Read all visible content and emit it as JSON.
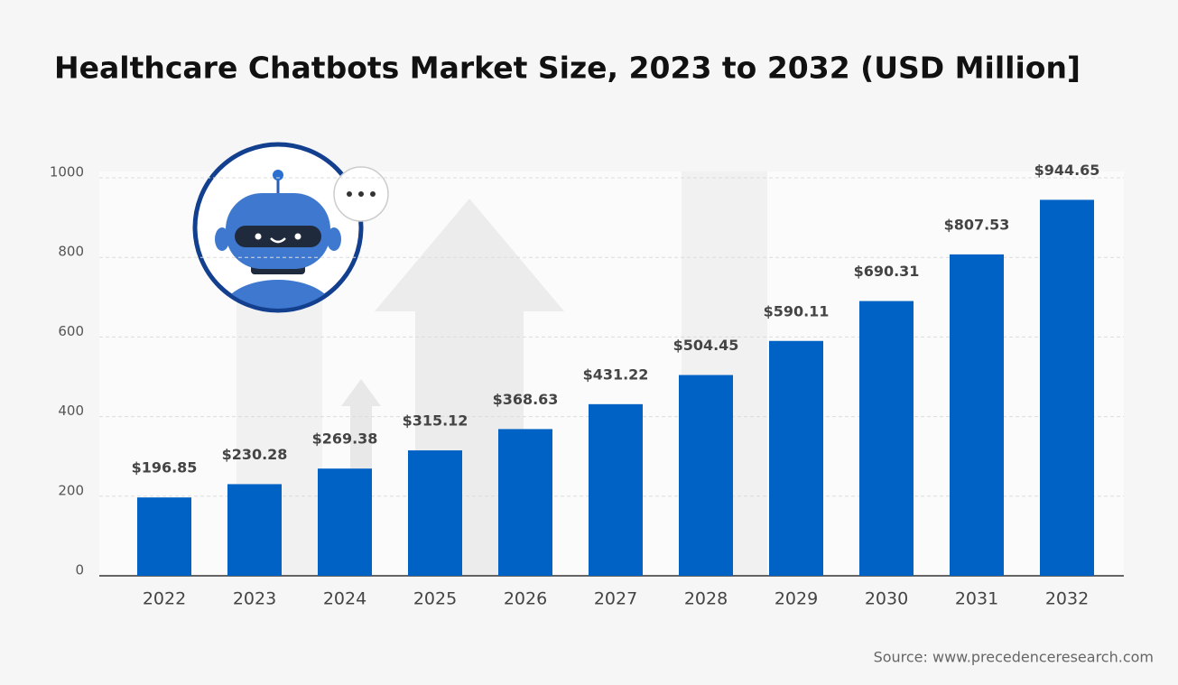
{
  "chart_data": {
    "type": "bar",
    "title": "Healthcare Chatbots Market Size, 2023 to 2032 (USD Million]",
    "categories": [
      "2022",
      "2023",
      "2024",
      "2025",
      "2026",
      "2027",
      "2028",
      "2029",
      "2030",
      "2031",
      "2032"
    ],
    "values": [
      196.85,
      230.28,
      269.38,
      315.12,
      368.63,
      431.22,
      504.45,
      590.11,
      690.31,
      807.53,
      944.65
    ],
    "value_labels": [
      "$196.85",
      "$230.28",
      "$269.38",
      "$315.12",
      "$368.63",
      "$431.22",
      "$504.45",
      "$590.11",
      "$690.31",
      "$807.53",
      "$944.65"
    ],
    "color": "#0062c4",
    "ylim": [
      0,
      1000
    ],
    "yticks": [
      0,
      200,
      400,
      600,
      800,
      1000
    ],
    "grid": true,
    "source": "Source: www.precedenceresearch.com"
  }
}
